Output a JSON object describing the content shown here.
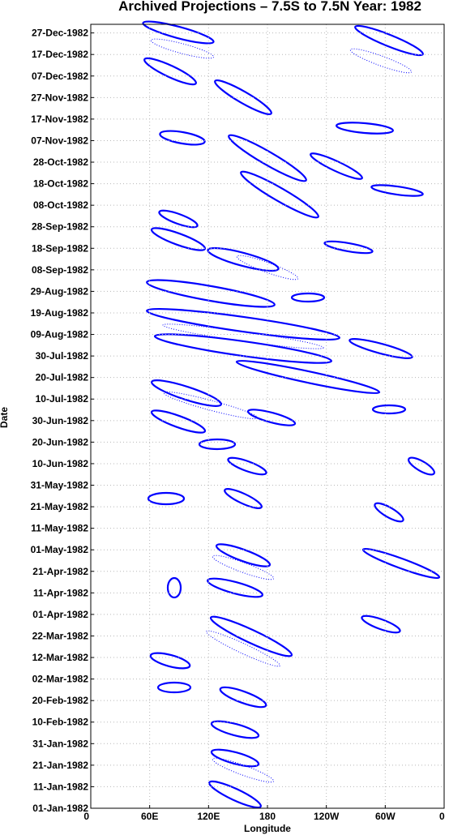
{
  "chart_data": {
    "type": "contour",
    "title": "Archived Projections – 7.5S to 7.5N Year: 1982",
    "xlabel": "Longitude",
    "ylabel": "Date",
    "color": "#0000ff",
    "grid": true,
    "xlim": [
      0,
      360
    ],
    "xticks": [
      0,
      {
        "value": 60,
        "label": "60E"
      },
      {
        "value": 120,
        "label": "120E"
      },
      180,
      {
        "value": 240,
        "label": "120W"
      },
      {
        "value": 300,
        "label": "60W"
      },
      {
        "value": 360,
        "label": "0"
      }
    ],
    "ylim": [
      0,
      364
    ],
    "yticks": [
      {
        "value": 0,
        "label": "01-Jan-1982"
      },
      {
        "value": 10,
        "label": "11-Jan-1982"
      },
      {
        "value": 20,
        "label": "21-Jan-1982"
      },
      {
        "value": 30,
        "label": "31-Jan-1982"
      },
      {
        "value": 40,
        "label": "10-Feb-1982"
      },
      {
        "value": 50,
        "label": "20-Feb-1982"
      },
      {
        "value": 60,
        "label": "02-Mar-1982"
      },
      {
        "value": 70,
        "label": "12-Mar-1982"
      },
      {
        "value": 80,
        "label": "22-Mar-1982"
      },
      {
        "value": 90,
        "label": "01-Apr-1982"
      },
      {
        "value": 100,
        "label": "11-Apr-1982"
      },
      {
        "value": 110,
        "label": "21-Apr-1982"
      },
      {
        "value": 120,
        "label": "01-May-1982"
      },
      {
        "value": 130,
        "label": "11-May-1982"
      },
      {
        "value": 140,
        "label": "21-May-1982"
      },
      {
        "value": 150,
        "label": "31-May-1982"
      },
      {
        "value": 160,
        "label": "10-Jun-1982"
      },
      {
        "value": 170,
        "label": "20-Jun-1982"
      },
      {
        "value": 180,
        "label": "30-Jun-1982"
      },
      {
        "value": 190,
        "label": "10-Jul-1982"
      },
      {
        "value": 200,
        "label": "20-Jul-1982"
      },
      {
        "value": 210,
        "label": "30-Jul-1982"
      },
      {
        "value": 220,
        "label": "09-Aug-1982"
      },
      {
        "value": 230,
        "label": "19-Aug-1982"
      },
      {
        "value": 240,
        "label": "29-Aug-1982"
      },
      {
        "value": 250,
        "label": "08-Sep-1982"
      },
      {
        "value": 260,
        "label": "18-Sep-1982"
      },
      {
        "value": 270,
        "label": "28-Sep-1982"
      },
      {
        "value": 280,
        "label": "08-Oct-1982"
      },
      {
        "value": 290,
        "label": "18-Oct-1982"
      },
      {
        "value": 300,
        "label": "28-Oct-1982"
      },
      {
        "value": 310,
        "label": "07-Nov-1982"
      },
      {
        "value": 320,
        "label": "17-Nov-1982"
      },
      {
        "value": 330,
        "label": "27-Nov-1982"
      },
      {
        "value": 340,
        "label": "07-Dec-1982"
      },
      {
        "value": 350,
        "label": "17-Dec-1982"
      },
      {
        "value": 360,
        "label": "27-Dec-1982"
      }
    ]
  }
}
